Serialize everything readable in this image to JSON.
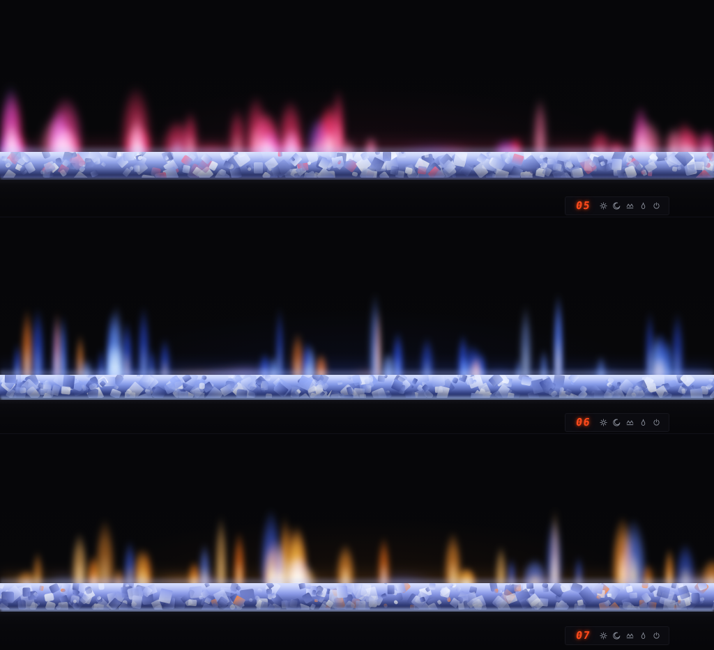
{
  "scene": {
    "subject": "linear electric fireplace flame color settings comparison",
    "background_color": "#050507"
  },
  "display": {
    "digit_color": "#ff4a1c",
    "icon_color": "#959ba7",
    "module_bg": "#0b0b10",
    "icons": [
      {
        "name": "sun-icon",
        "meaning": "flame brightness"
      },
      {
        "name": "moon-icon",
        "meaning": "sleep timer"
      },
      {
        "name": "ember-bed-icon",
        "meaning": "ember bed"
      },
      {
        "name": "flame-icon",
        "meaning": "heater"
      },
      {
        "name": "power-icon",
        "meaning": "power"
      }
    ]
  },
  "panels": [
    {
      "name": "flame-setting-05",
      "display_value": "05",
      "seed": 1105,
      "flame_profile": "blob",
      "flame_colors": [
        "#ff2e63",
        "#ff2e63",
        "#ff417d",
        "#f23a8e",
        "#ff244f",
        "#e03aa8",
        "#c944e0",
        "#8a52ff",
        "#ff6f9e",
        "#ff1744"
      ],
      "core_colors": [
        "#ffd4e4",
        "#ffaccb",
        "#d7b6ff",
        "#ffc4d8"
      ],
      "haze": "rgba(130,30,70,0.10)",
      "band": "rgba(255,60,110,0.20)",
      "crystal_light": "#dde6ff",
      "crystal_base": "#94a6ee",
      "crystal_deep": "#4d5ca8",
      "glint": "#ff6f93",
      "bed_glow": "rgba(150,165,255,0.50)"
    },
    {
      "name": "flame-setting-06",
      "display_value": "06",
      "seed": 2206,
      "flame_profile": "streak",
      "flame_colors": [
        "#2a52ff",
        "#2a52ff",
        "#3c6bff",
        "#5d86ff",
        "#1f3fe0",
        "#7fa1ff",
        "#2a52ff",
        "#ff8c34",
        "#ff7a22"
      ],
      "core_colors": [
        "#cfe0ff",
        "#a9c4ff",
        "#8fb0ff",
        "#ffd9a8"
      ],
      "haze": "rgba(30,50,150,0.10)",
      "band": "rgba(55,90,255,0.22)",
      "crystal_light": "#d8e2ff",
      "crystal_base": "#8aa0f0",
      "crystal_deep": "#3f51a5",
      "glint": "#9db4ff",
      "bed_glow": "rgba(165,190,255,0.80)"
    },
    {
      "name": "flame-setting-07",
      "display_value": "07",
      "seed": 3307,
      "flame_profile": "flame",
      "flame_colors": [
        "#ff9228",
        "#ff9228",
        "#ffa43c",
        "#ff7f16",
        "#ffb85c",
        "#f2690f",
        "#ff9228",
        "#3d63ff",
        "#5d80ff"
      ],
      "core_colors": [
        "#ffe3b0",
        "#ffd089",
        "#fff0cc",
        "#cfe0ff"
      ],
      "haze": "rgba(150,75,10,0.10)",
      "band": "rgba(255,140,40,0.16)",
      "crystal_light": "#d8e0ff",
      "crystal_base": "#8c9cec",
      "crystal_deep": "#4452a0",
      "glint": "#ff8f4d",
      "bed_glow": "rgba(170,190,255,0.80)"
    }
  ]
}
